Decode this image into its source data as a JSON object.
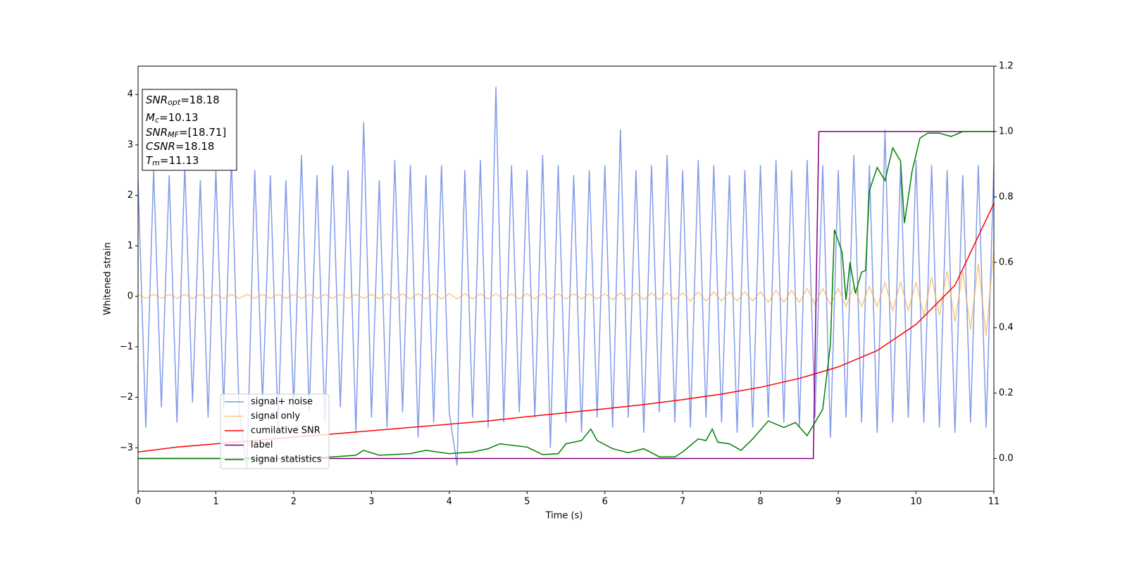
{
  "chart_data": {
    "type": "line",
    "xlabel": "Time (s)",
    "ylabel": "Whitened strain",
    "xlim": [
      0,
      11
    ],
    "xticks": [
      0,
      1,
      2,
      3,
      4,
      5,
      6,
      7,
      8,
      9,
      10,
      11
    ],
    "ylim": [
      -3.86,
      4.56
    ],
    "yticks": [
      {
        "value": -3,
        "label": "−3"
      },
      {
        "value": -2,
        "label": "−2"
      },
      {
        "value": -1,
        "label": "−1"
      },
      0,
      1,
      2,
      3,
      4
    ],
    "y2lim": [
      -0.1,
      1.2
    ],
    "y2ticks": [
      {
        "value": 0,
        "label": "0.0"
      },
      {
        "value": 0.2,
        "label": "0.2"
      },
      {
        "value": 0.4,
        "label": "0.4"
      },
      {
        "value": 0.6,
        "label": "0.6"
      },
      {
        "value": 0.8,
        "label": "0.8"
      },
      {
        "value": 1,
        "label": "1.0"
      },
      {
        "value": 1.2,
        "label": "1.2"
      }
    ],
    "legend": "lower left",
    "annotations": [
      [
        "SNR",
        "opt",
        "=18.18"
      ],
      [
        "M",
        "c",
        "=10.13"
      ],
      [
        "SNR",
        "MF",
        "=[18.71]"
      ],
      [
        "CSNR",
        "",
        "=18.18"
      ],
      [
        "T",
        "m",
        "=11.13"
      ]
    ],
    "series": [
      {
        "name": "signal+ noise",
        "color": "#7b96e8",
        "x": [
          0,
          0.1,
          0.2,
          0.3,
          0.4,
          0.5,
          0.6,
          0.7,
          0.8,
          0.9,
          1,
          1.1,
          1.2,
          1.3,
          1.4,
          1.5,
          1.6,
          1.7,
          1.8,
          1.9,
          2,
          2.1,
          2.2,
          2.3,
          2.4,
          2.5,
          2.6,
          2.7,
          2.8,
          2.9,
          3,
          3.1,
          3.2,
          3.3,
          3.4,
          3.5,
          3.6,
          3.7,
          3.8,
          3.9,
          4,
          4.1,
          4.2,
          4.3,
          4.4,
          4.5,
          4.6,
          4.7,
          4.8,
          4.9,
          5,
          5.1,
          5.2,
          5.3,
          5.4,
          5.5,
          5.6,
          5.7,
          5.8,
          5.9,
          6,
          6.1,
          6.2,
          6.3,
          6.4,
          6.5,
          6.6,
          6.7,
          6.8,
          6.9,
          7,
          7.1,
          7.2,
          7.3,
          7.4,
          7.5,
          7.6,
          7.7,
          7.8,
          7.9,
          8,
          8.1,
          8.2,
          8.3,
          8.4,
          8.5,
          8.6,
          8.7,
          8.8,
          8.9,
          9,
          9.1,
          9.2,
          9.3,
          9.4,
          9.5,
          9.6,
          9.7,
          9.8,
          9.9,
          10,
          10.1,
          10.2,
          10.3,
          10.4,
          10.5,
          10.6,
          10.7,
          10.8,
          10.9,
          11
        ],
        "values": [
          2.3,
          -2.6,
          2.5,
          -2.2,
          2.4,
          -2.5,
          2.6,
          -2.1,
          2.3,
          -2.4,
          2.5,
          -2.2,
          2.7,
          -2.3,
          -3.4,
          2.5,
          -2.1,
          2.4,
          -2.6,
          2.3,
          -2.2,
          2.8,
          -2.3,
          2.4,
          -2.5,
          2.6,
          -2.2,
          2.5,
          -2.7,
          3.45,
          -2.4,
          2.3,
          -2.6,
          2.7,
          -2.3,
          2.6,
          -2.8,
          2.4,
          -2.5,
          2.6,
          -2.3,
          -3.35,
          2.5,
          -2.4,
          2.7,
          -2.6,
          4.15,
          -2.5,
          2.6,
          -2.3,
          2.5,
          -2.4,
          2.8,
          -3.0,
          2.6,
          -2.5,
          2.4,
          -2.7,
          2.5,
          -2.4,
          2.6,
          -2.6,
          3.3,
          -2.4,
          2.5,
          -2.7,
          2.6,
          -2.3,
          2.8,
          -2.5,
          2.5,
          -2.6,
          2.7,
          -2.4,
          2.6,
          -2.5,
          2.4,
          -2.7,
          2.5,
          -2.6,
          2.6,
          -2.4,
          2.7,
          -2.5,
          2.5,
          -2.6,
          2.7,
          -2.4,
          2.6,
          -2.8,
          2.5,
          -2.4,
          2.8,
          -2.5,
          2.6,
          -2.7,
          3.3,
          -2.5,
          2.6,
          -2.4,
          2.7,
          -2.5,
          2.6,
          -2.6,
          2.5,
          -2.7,
          2.4,
          -2.5,
          2.6,
          -2.6,
          2.6
        ]
      },
      {
        "name": "signal only",
        "color": "#f5b04a",
        "x": [
          0,
          0.1,
          0.2,
          0.3,
          0.4,
          0.5,
          0.6,
          0.7,
          0.8,
          0.9,
          1,
          1.1,
          1.2,
          1.3,
          1.4,
          1.5,
          1.6,
          1.7,
          1.8,
          1.9,
          2,
          2.1,
          2.2,
          2.3,
          2.4,
          2.5,
          2.6,
          2.7,
          2.8,
          2.9,
          3,
          3.1,
          3.2,
          3.3,
          3.4,
          3.5,
          3.6,
          3.7,
          3.8,
          3.9,
          4,
          4.1,
          4.2,
          4.3,
          4.4,
          4.5,
          4.6,
          4.7,
          4.8,
          4.9,
          5,
          5.1,
          5.2,
          5.3,
          5.4,
          5.5,
          5.6,
          5.7,
          5.8,
          5.9,
          6,
          6.1,
          6.2,
          6.3,
          6.4,
          6.5,
          6.6,
          6.7,
          6.8,
          6.9,
          7,
          7.1,
          7.2,
          7.3,
          7.4,
          7.5,
          7.6,
          7.7,
          7.8,
          7.9,
          8,
          8.1,
          8.2,
          8.3,
          8.4,
          8.5,
          8.6,
          8.7,
          8.8,
          8.9,
          9,
          9.1,
          9.2,
          9.3,
          9.4,
          9.5,
          9.6,
          9.7,
          9.8,
          9.9,
          10,
          10.1,
          10.2,
          10.3,
          10.4,
          10.5,
          10.6,
          10.7,
          10.8,
          10.9,
          11
        ],
        "values": [
          0.04,
          -0.04,
          0.04,
          -0.04,
          0.04,
          -0.04,
          0.04,
          -0.04,
          0.04,
          -0.04,
          0.04,
          -0.04,
          0.04,
          -0.04,
          0.04,
          -0.04,
          0.04,
          -0.04,
          0.04,
          -0.04,
          0.04,
          -0.04,
          0.04,
          -0.04,
          0.04,
          -0.04,
          0.04,
          -0.04,
          0.04,
          -0.04,
          0.04,
          -0.05,
          0.05,
          -0.05,
          0.05,
          -0.05,
          0.05,
          -0.05,
          0.05,
          -0.05,
          0.05,
          -0.05,
          0.05,
          -0.05,
          0.05,
          -0.05,
          0.05,
          -0.05,
          0.05,
          -0.05,
          0.05,
          -0.05,
          0.05,
          -0.05,
          0.05,
          -0.05,
          0.05,
          -0.05,
          0.05,
          -0.05,
          0.05,
          -0.07,
          0.07,
          -0.07,
          0.07,
          -0.07,
          0.07,
          -0.07,
          0.07,
          -0.07,
          0.07,
          -0.09,
          0.09,
          -0.09,
          0.09,
          -0.09,
          0.09,
          -0.09,
          0.09,
          -0.09,
          0.09,
          -0.12,
          0.12,
          -0.12,
          0.12,
          -0.12,
          0.16,
          -0.16,
          0.16,
          -0.16,
          0.16,
          -0.2,
          0.2,
          -0.2,
          0.2,
          -0.2,
          0.28,
          -0.28,
          0.28,
          -0.28,
          0.28,
          -0.38,
          0.38,
          -0.38,
          0.5,
          -0.5,
          0.5,
          -0.65,
          0.65,
          -0.78,
          0.95
        ]
      },
      {
        "name": "cumilative SNR",
        "color": "#ff0000",
        "axis": "y2",
        "x": [
          0,
          0.5,
          1,
          1.5,
          2,
          2.5,
          3,
          3.5,
          4,
          4.5,
          5,
          5.5,
          6,
          6.5,
          7,
          7.5,
          8,
          8.5,
          9,
          9.5,
          10,
          10.5,
          11
        ],
        "values": [
          0.02,
          0.035,
          0.045,
          0.055,
          0.065,
          0.075,
          0.085,
          0.095,
          0.105,
          0.115,
          0.128,
          0.14,
          0.152,
          0.165,
          0.18,
          0.197,
          0.218,
          0.245,
          0.28,
          0.33,
          0.41,
          0.53,
          0.78
        ]
      },
      {
        "name": "label",
        "color": "#800080",
        "axis": "y2",
        "x": [
          0,
          8.68,
          8.75,
          11
        ],
        "values": [
          0,
          0,
          1,
          1
        ]
      },
      {
        "name": "signal statistics",
        "color": "#008000",
        "axis": "y2",
        "x": [
          0,
          0.5,
          1,
          2,
          2.5,
          2.8,
          2.9,
          3.1,
          3.5,
          3.7,
          4,
          4.3,
          4.5,
          4.65,
          5,
          5.2,
          5.4,
          5.5,
          5.7,
          5.82,
          5.9,
          6.1,
          6.3,
          6.5,
          6.7,
          6.9,
          7,
          7.2,
          7.3,
          7.38,
          7.45,
          7.6,
          7.75,
          7.9,
          8.1,
          8.3,
          8.45,
          8.6,
          8.8,
          8.9,
          8.95,
          9.05,
          9.1,
          9.15,
          9.22,
          9.3,
          9.35,
          9.4,
          9.5,
          9.6,
          9.7,
          9.8,
          9.85,
          9.95,
          10.05,
          10.15,
          10.3,
          10.45,
          10.6,
          11
        ],
        "values": [
          0,
          0,
          0,
          0,
          0.005,
          0.01,
          0.025,
          0.01,
          0.015,
          0.025,
          0.015,
          0.02,
          0.03,
          0.045,
          0.035,
          0.012,
          0.015,
          0.045,
          0.055,
          0.09,
          0.055,
          0.03,
          0.018,
          0.03,
          0.005,
          0.005,
          0.02,
          0.06,
          0.055,
          0.09,
          0.05,
          0.045,
          0.025,
          0.06,
          0.115,
          0.095,
          0.11,
          0.07,
          0.15,
          0.35,
          0.7,
          0.63,
          0.485,
          0.6,
          0.505,
          0.57,
          0.575,
          0.82,
          0.89,
          0.85,
          0.95,
          0.91,
          0.72,
          0.88,
          0.98,
          0.995,
          0.995,
          0.985,
          1,
          1
        ]
      }
    ]
  }
}
